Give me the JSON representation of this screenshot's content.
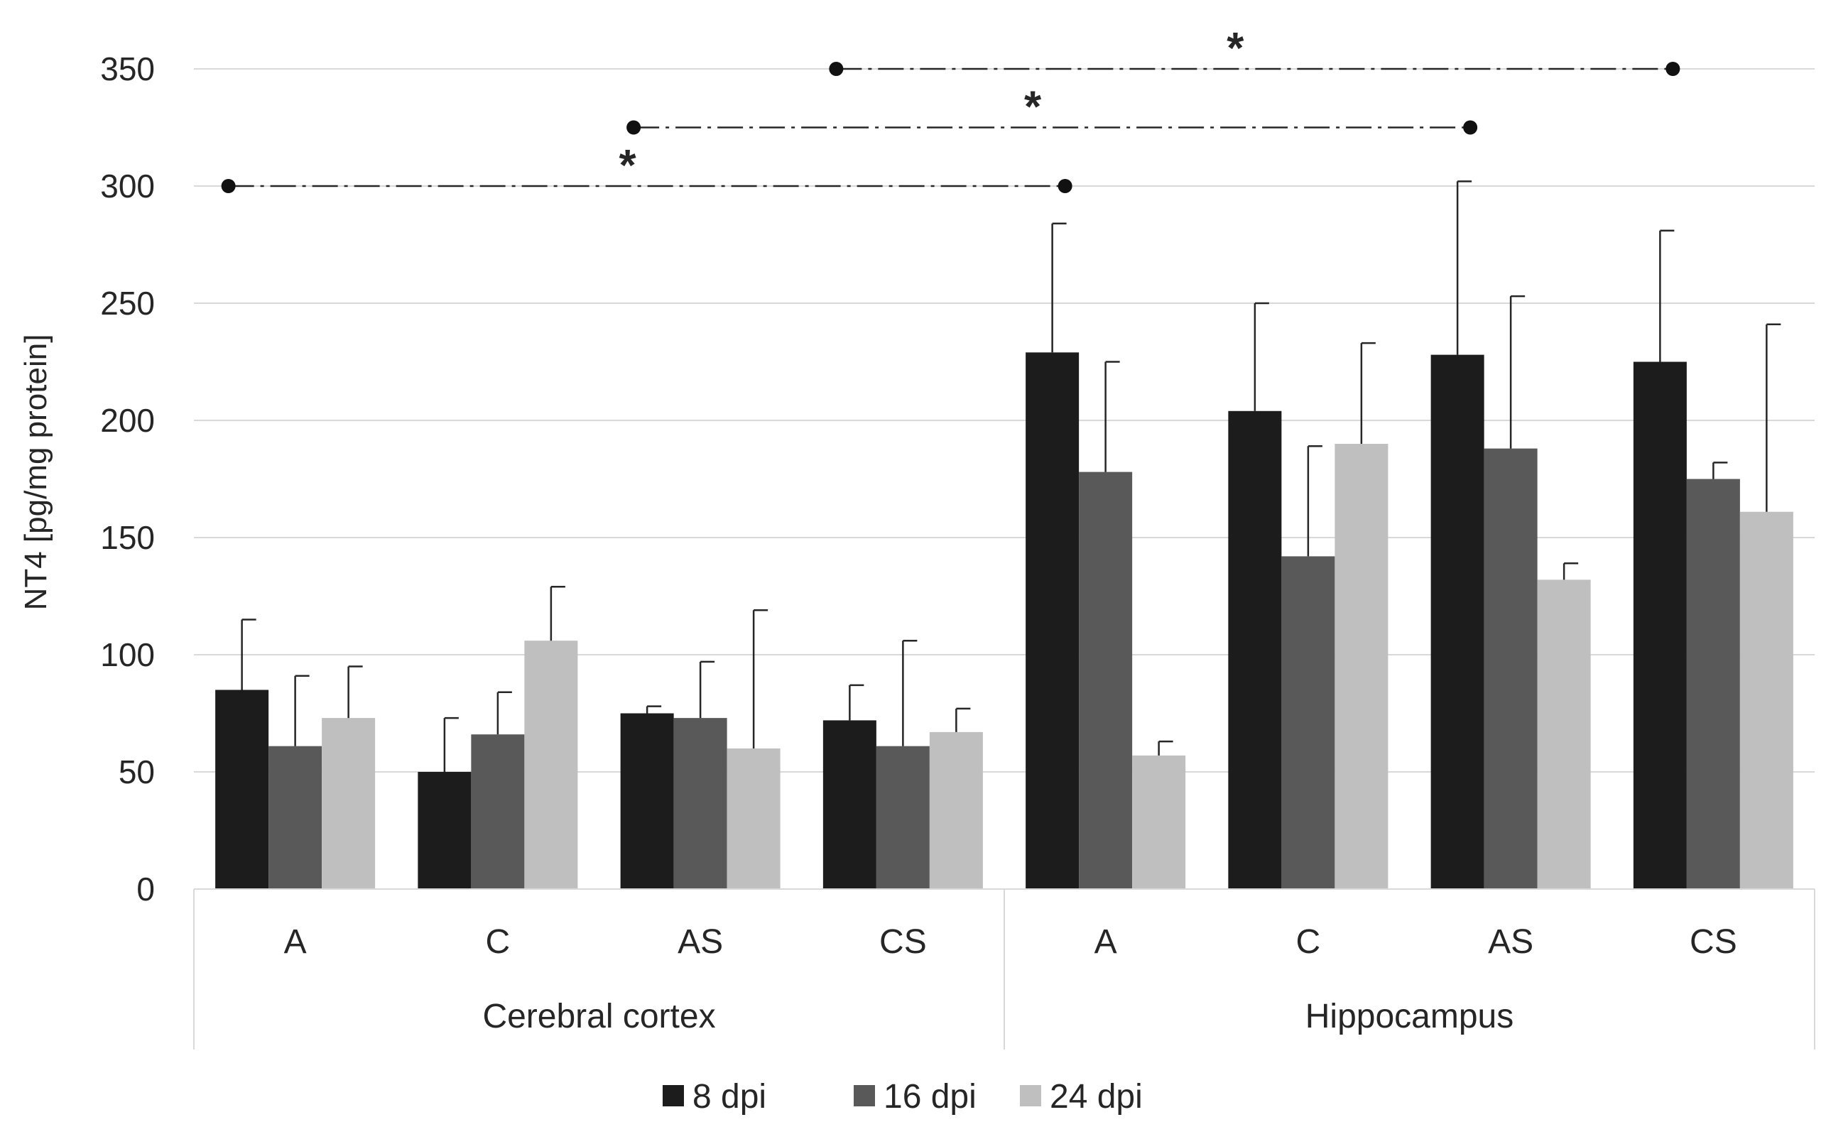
{
  "chart_data": {
    "type": "bar",
    "title": "",
    "xlabel": "",
    "ylabel": "NT4  [pg/mg protein]",
    "ylim": [
      0,
      350
    ],
    "yticks": [
      0,
      50,
      100,
      150,
      200,
      250,
      300,
      350
    ],
    "grid": true,
    "legend_position": "bottom",
    "groups": [
      {
        "label": "Cerebral cortex",
        "categories": [
          "A",
          "C",
          "AS",
          "CS"
        ]
      },
      {
        "label": "Hippocampus",
        "categories": [
          "A",
          "C",
          "AS",
          "CS"
        ]
      }
    ],
    "series": [
      {
        "name": "8 dpi",
        "color": "#1c1c1c",
        "values": [
          85,
          50,
          75,
          72,
          229,
          204,
          228,
          225
        ],
        "errors": [
          30,
          23,
          3,
          15,
          55,
          46,
          74,
          56
        ]
      },
      {
        "name": "16 dpi",
        "color": "#595959",
        "values": [
          61,
          66,
          73,
          61,
          178,
          142,
          188,
          175
        ],
        "errors": [
          30,
          18,
          24,
          45,
          47,
          47,
          65,
          7
        ]
      },
      {
        "name": "24 dpi",
        "color": "#bfbfbf",
        "values": [
          73,
          106,
          60,
          67,
          57,
          190,
          132,
          161
        ],
        "errors": [
          22,
          23,
          59,
          10,
          6,
          43,
          7,
          80
        ]
      }
    ],
    "significance": [
      {
        "from_index": 0,
        "to_index": 4,
        "y": 300,
        "label": "*"
      },
      {
        "from_index": 2,
        "to_index": 6,
        "y": 325,
        "label": "*"
      },
      {
        "from_index": 3,
        "to_index": 7,
        "y": 350,
        "label": "*"
      }
    ]
  }
}
